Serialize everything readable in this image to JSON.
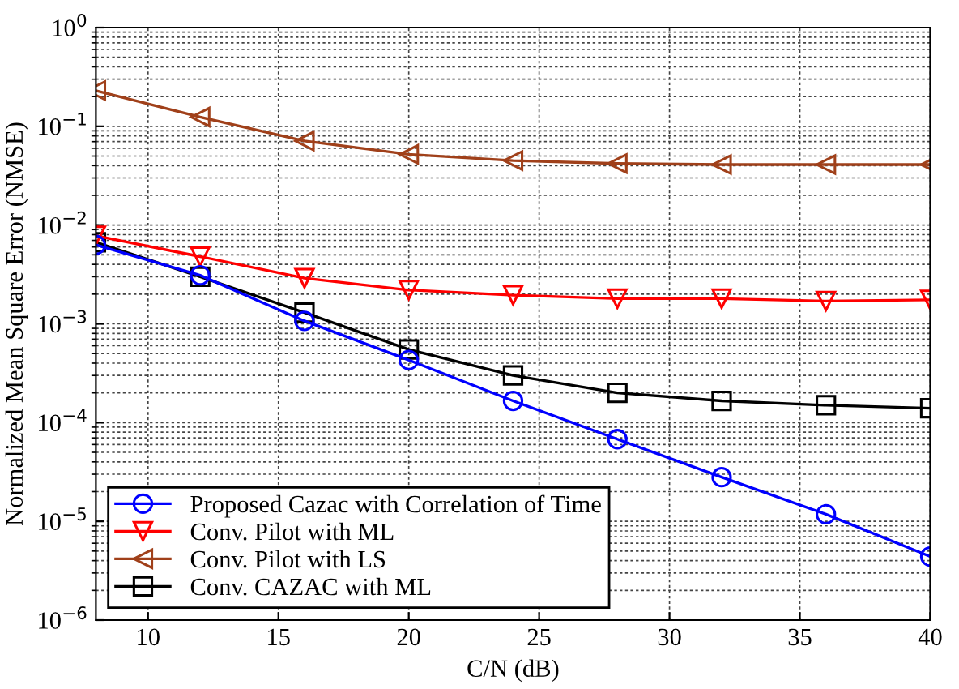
{
  "chart_data": {
    "type": "line",
    "xlabel": "C/N (dB)",
    "ylabel": "Normalized Mean Square Error (NMSE)",
    "x": [
      8,
      12,
      16,
      20,
      24,
      28,
      32,
      36,
      40
    ],
    "series": [
      {
        "name": "Proposed Cazac with Correlation of Time",
        "color": "#0000ff",
        "marker": "circle",
        "values": [
          0.0063,
          0.0031,
          0.00107,
          0.00043,
          0.000166,
          6.8e-05,
          2.8e-05,
          1.18e-05,
          4.4e-06
        ]
      },
      {
        "name": "Conv. Pilot with ML",
        "color": "#ff0000",
        "marker": "triangle_down",
        "values": [
          0.0078,
          0.0048,
          0.0029,
          0.0022,
          0.00195,
          0.0018,
          0.0018,
          0.0017,
          0.00175
        ]
      },
      {
        "name": "Conv. Pilot with LS",
        "color": "#a0401a",
        "marker": "triangle_left",
        "values": [
          0.23,
          0.124,
          0.071,
          0.052,
          0.045,
          0.042,
          0.041,
          0.041,
          0.041
        ]
      },
      {
        "name": "Conv. CAZAC with ML",
        "color": "#000000",
        "marker": "square",
        "values": [
          0.0067,
          0.003,
          0.0013,
          0.00055,
          0.0003,
          0.0002,
          0.000166,
          0.00015,
          0.00014
        ]
      }
    ],
    "log": "y",
    "xlim": [
      8,
      40
    ],
    "ylim": [
      1e-06,
      1
    ],
    "xticks": [
      10,
      15,
      20,
      25,
      30,
      35,
      40
    ],
    "yticks": [
      {
        "value": 1e-06,
        "label": "10$^{−6}$"
      },
      {
        "value": 1e-05,
        "label": "10$^{−5}$"
      },
      {
        "value": 0.0001,
        "label": "10$^{−4}$"
      },
      {
        "value": 0.001,
        "label": "10$^{−3}$"
      },
      {
        "value": 0.01,
        "label": "10$^{−2}$"
      },
      {
        "value": 0.1,
        "label": "10$^{−1}$"
      },
      {
        "value": 1,
        "label": "10$^{0}$"
      }
    ],
    "grid": true,
    "legend": "bottom left",
    "line_style": "solid"
  }
}
